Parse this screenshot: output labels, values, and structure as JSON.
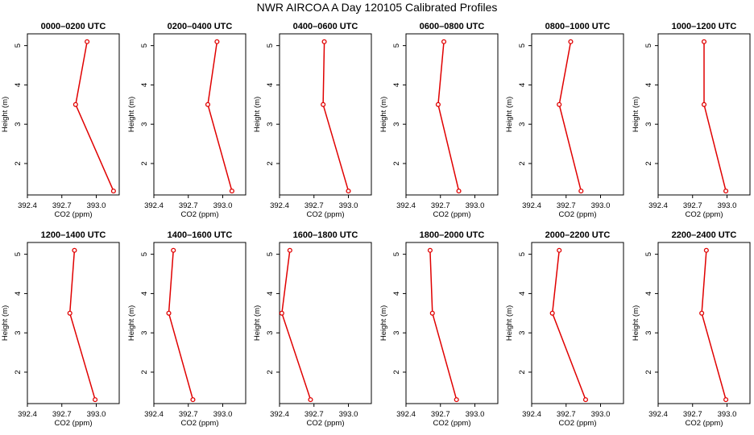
{
  "title": "NWR AIRCOA A  Day 120105  Calibrated Profiles",
  "colors": {
    "profile": "#e00000",
    "axis": "#000000",
    "background": "#ffffff"
  },
  "chart_data": {
    "type": "line",
    "layout": "2 rows x 6 panels",
    "xlabel": "CO2 (ppm)",
    "ylabel": "Height (m)",
    "xlim": [
      392.4,
      393.2
    ],
    "ylim": [
      1.2,
      5.3
    ],
    "xticks": [
      392.4,
      392.7,
      393.0
    ],
    "yticks": [
      2,
      3,
      4,
      5
    ],
    "heights": [
      1.3,
      3.5,
      5.1
    ],
    "panels": [
      {
        "title": "0000–0200 UTC",
        "co2": [
          393.15,
          392.82,
          392.92
        ]
      },
      {
        "title": "0200–0400 UTC",
        "co2": [
          393.08,
          392.87,
          392.95
        ]
      },
      {
        "title": "0400–0600 UTC",
        "co2": [
          393.0,
          392.78,
          392.79
        ]
      },
      {
        "title": "0600–0800 UTC",
        "co2": [
          392.86,
          392.68,
          392.73
        ]
      },
      {
        "title": "0800–1000 UTC",
        "co2": [
          392.83,
          392.64,
          392.74
        ]
      },
      {
        "title": "1000–1200 UTC",
        "co2": [
          392.99,
          392.8,
          392.8
        ]
      },
      {
        "title": "1200–1400 UTC",
        "co2": [
          392.99,
          392.77,
          392.81
        ]
      },
      {
        "title": "1400–1600 UTC",
        "co2": [
          392.74,
          392.53,
          392.57
        ]
      },
      {
        "title": "1600–1800 UTC",
        "co2": [
          392.67,
          392.42,
          392.49
        ]
      },
      {
        "title": "1800–2000 UTC",
        "co2": [
          392.84,
          392.63,
          392.61
        ]
      },
      {
        "title": "2000–2200 UTC",
        "co2": [
          392.87,
          392.58,
          392.64
        ]
      },
      {
        "title": "2200–2400 UTC",
        "co2": [
          392.99,
          392.78,
          392.82
        ]
      }
    ]
  }
}
